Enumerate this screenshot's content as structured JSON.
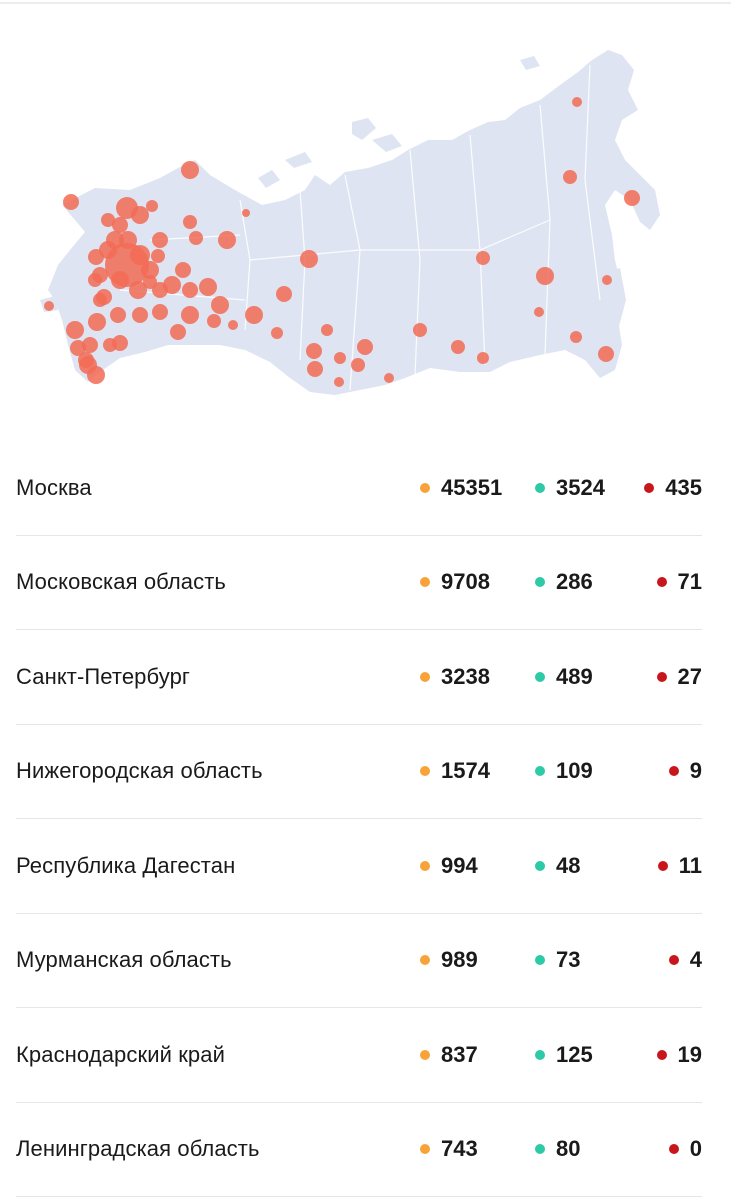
{
  "colors": {
    "cases": "#f7a339",
    "recovered": "#2ecaa8",
    "deaths": "#c8161d",
    "map_land": "#dfe4f2",
    "map_marker": "#f26b55"
  },
  "rows": [
    {
      "region": "Москва",
      "cases": "45351",
      "recovered": "3524",
      "deaths": "435"
    },
    {
      "region": "Московская область",
      "cases": "9708",
      "recovered": "286",
      "deaths": "71"
    },
    {
      "region": "Санкт-Петербург",
      "cases": "3238",
      "recovered": "489",
      "deaths": "27"
    },
    {
      "region": "Нижегородская область",
      "cases": "1574",
      "recovered": "109",
      "deaths": "9"
    },
    {
      "region": "Республика Дагестан",
      "cases": "994",
      "recovered": "48",
      "deaths": "11"
    },
    {
      "region": "Мурманская область",
      "cases": "989",
      "recovered": "73",
      "deaths": "4"
    },
    {
      "region": "Краснодарский край",
      "cases": "837",
      "recovered": "125",
      "deaths": "19"
    },
    {
      "region": "Ленинградская область",
      "cases": "743",
      "recovered": "80",
      "deaths": "0"
    }
  ]
}
